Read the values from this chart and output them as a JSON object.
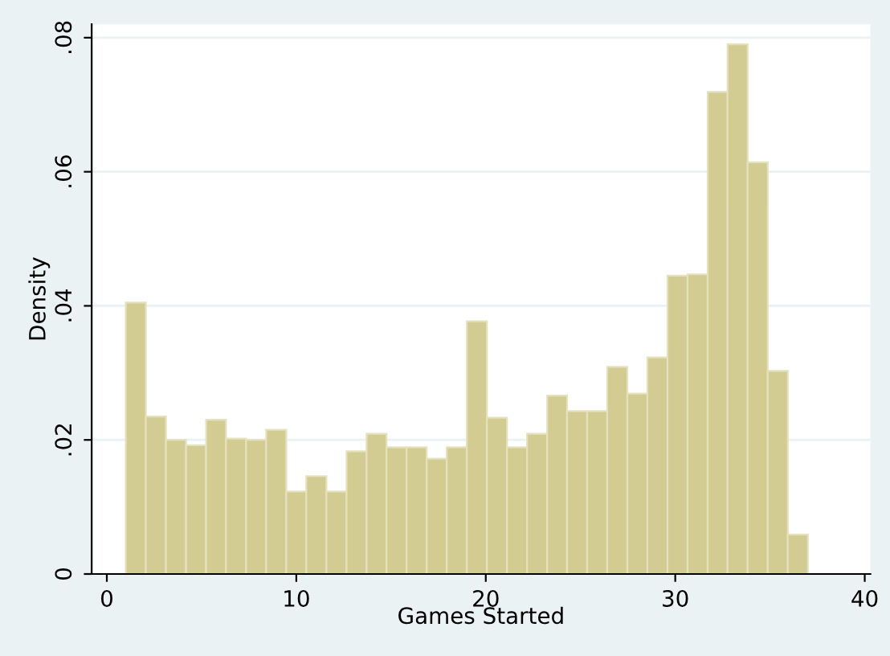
{
  "chart_data": {
    "type": "histogram",
    "xlabel": "Games Started",
    "ylabel": "Density",
    "bins": [
      1,
      2.06,
      3.12,
      4.18,
      5.24,
      6.29,
      7.35,
      8.41,
      9.47,
      10.53,
      11.59,
      12.65,
      13.71,
      14.76,
      15.82,
      16.88,
      17.94,
      19,
      20.06,
      21.12,
      22.18,
      23.24,
      24.29,
      25.35,
      26.41,
      27.47,
      28.53,
      29.59,
      30.65,
      31.71,
      32.76,
      33.82,
      34.88,
      35.94,
      37
    ],
    "values": [
      0.0405,
      0.0235,
      0.02,
      0.0192,
      0.023,
      0.0202,
      0.02,
      0.0215,
      0.0123,
      0.0146,
      0.0123,
      0.0183,
      0.0209,
      0.0189,
      0.0189,
      0.0172,
      0.0189,
      0.0377,
      0.0233,
      0.0189,
      0.0209,
      0.0266,
      0.0243,
      0.0243,
      0.0309,
      0.0269,
      0.0323,
      0.0445,
      0.0447,
      0.0719,
      0.079,
      0.0614,
      0.0303,
      0.0059
    ],
    "color": "#d2cb92",
    "xlim": [
      -0.8,
      40.3
    ],
    "ylim": [
      0,
      0.082
    ],
    "xticks": [
      0,
      10,
      20,
      30,
      40
    ],
    "yticks": [
      0,
      {
        "value": 0.02,
        "label": ".02"
      },
      {
        "value": 0.04,
        "label": ".04"
      },
      {
        "value": 0.06,
        "label": ".06"
      },
      {
        "value": 0.08,
        "label": ".08"
      }
    ],
    "grid": "y"
  }
}
